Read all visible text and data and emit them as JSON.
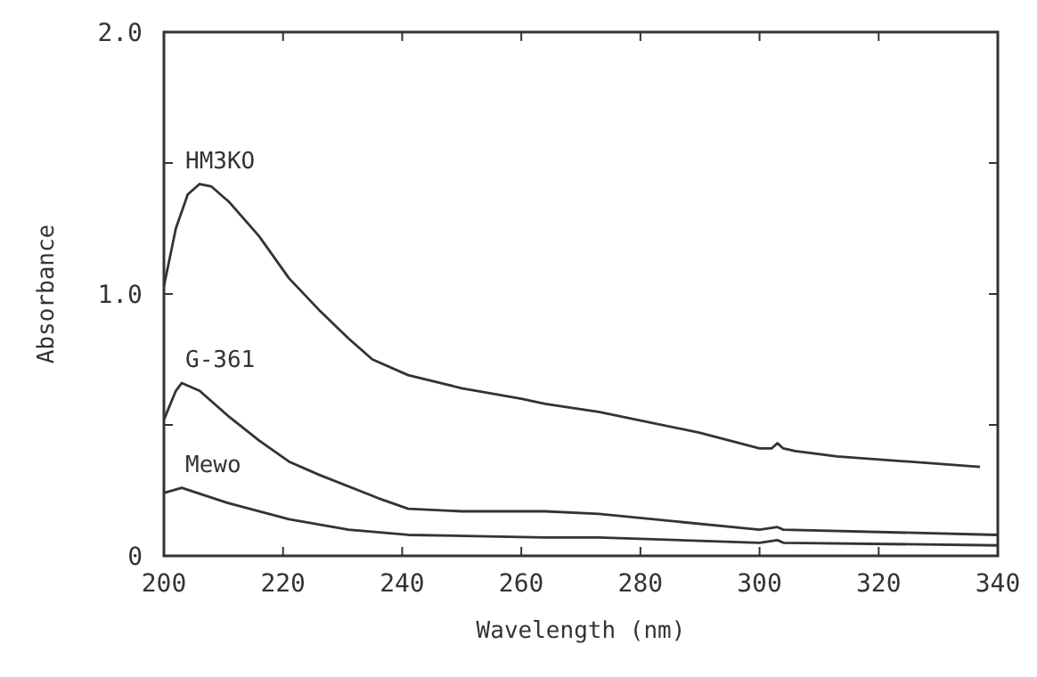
{
  "chart_data": {
    "type": "line",
    "xlabel": "Wavelength (nm)",
    "ylabel": "Absorbance",
    "xlim": [
      200,
      340
    ],
    "ylim": [
      0,
      2
    ],
    "xticks": [
      200,
      220,
      240,
      260,
      280,
      300,
      320,
      340
    ],
    "yticks": [
      {
        "value": 0,
        "label": "0"
      },
      {
        "value": 0.5,
        "label": null
      },
      {
        "value": 1,
        "label": "1.0"
      },
      {
        "value": 1.5,
        "label": null
      },
      {
        "value": 2,
        "label": "2.0"
      }
    ],
    "grid": false,
    "marker": "none",
    "line_style": "solid",
    "series": [
      {
        "name": "HM3KO",
        "color": "#333333",
        "x": [
          200,
          202,
          204,
          206,
          208,
          211,
          216,
          221,
          226,
          231,
          235,
          241,
          250,
          260,
          264,
          273,
          290,
          300,
          302,
          303,
          304,
          306,
          313,
          325,
          337
        ],
        "values": [
          1.03,
          1.25,
          1.38,
          1.42,
          1.41,
          1.35,
          1.22,
          1.06,
          0.94,
          0.83,
          0.75,
          0.69,
          0.64,
          0.6,
          0.58,
          0.55,
          0.47,
          0.41,
          0.41,
          0.43,
          0.41,
          0.4,
          0.38,
          0.36,
          0.34
        ]
      },
      {
        "name": "G-361",
        "color": "#333333",
        "x": [
          200,
          202,
          203,
          206,
          211,
          216,
          221,
          226,
          236,
          241,
          250,
          264,
          273,
          300,
          303,
          304,
          340
        ],
        "values": [
          0.52,
          0.63,
          0.66,
          0.63,
          0.53,
          0.44,
          0.36,
          0.31,
          0.22,
          0.18,
          0.17,
          0.17,
          0.16,
          0.1,
          0.11,
          0.1,
          0.08
        ]
      },
      {
        "name": "Mewo",
        "color": "#333333",
        "x": [
          200,
          203,
          211,
          221,
          231,
          241,
          264,
          273,
          300,
          303,
          304,
          340
        ],
        "values": [
          0.24,
          0.26,
          0.2,
          0.14,
          0.1,
          0.08,
          0.07,
          0.07,
          0.05,
          0.06,
          0.05,
          0.04
        ]
      }
    ]
  }
}
